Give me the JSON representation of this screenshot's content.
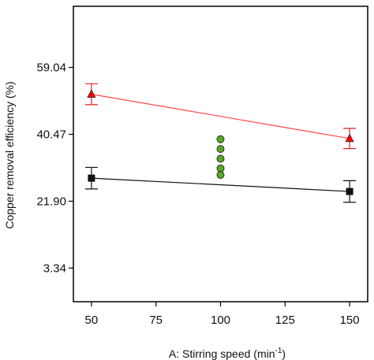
{
  "chart_data": {
    "type": "scatter",
    "xlabel": "A: Stirring speed (min",
    "xlabel_sup": "-1",
    "xlabel_close": ")",
    "ylabel": "Copper removal efficiency (%)",
    "xlim": [
      43,
      157
    ],
    "ylim": [
      -6,
      76
    ],
    "x_ticks": [
      50,
      75,
      100,
      125,
      150
    ],
    "x_tick_labels": [
      "50",
      "75",
      "100",
      "125",
      "150"
    ],
    "y_ticks": [
      3.34,
      21.9,
      40.47,
      59.04
    ],
    "y_tick_labels": [
      "3.34",
      "21.90",
      "40.47",
      "59.04"
    ],
    "grid": false,
    "series": [
      {
        "marker": "triangle",
        "color": "#ff0000",
        "line_color": "#ff4444",
        "x": [
          50,
          150
        ],
        "y": [
          51.6,
          39.3
        ],
        "err_low": [
          48.7,
          36.5
        ],
        "err_high": [
          54.5,
          42.1
        ]
      },
      {
        "marker": "square",
        "color": "#111111",
        "line_color": "#111111",
        "x": [
          50,
          150
        ],
        "y": [
          28.3,
          24.6
        ],
        "err_low": [
          25.3,
          21.6
        ],
        "err_high": [
          31.3,
          27.6
        ]
      },
      {
        "marker": "circle",
        "color": "#55aa22",
        "x": [
          100,
          100,
          100,
          100,
          100
        ],
        "y": [
          39.1,
          36.4,
          33.7,
          31.0,
          29.2
        ]
      }
    ]
  }
}
